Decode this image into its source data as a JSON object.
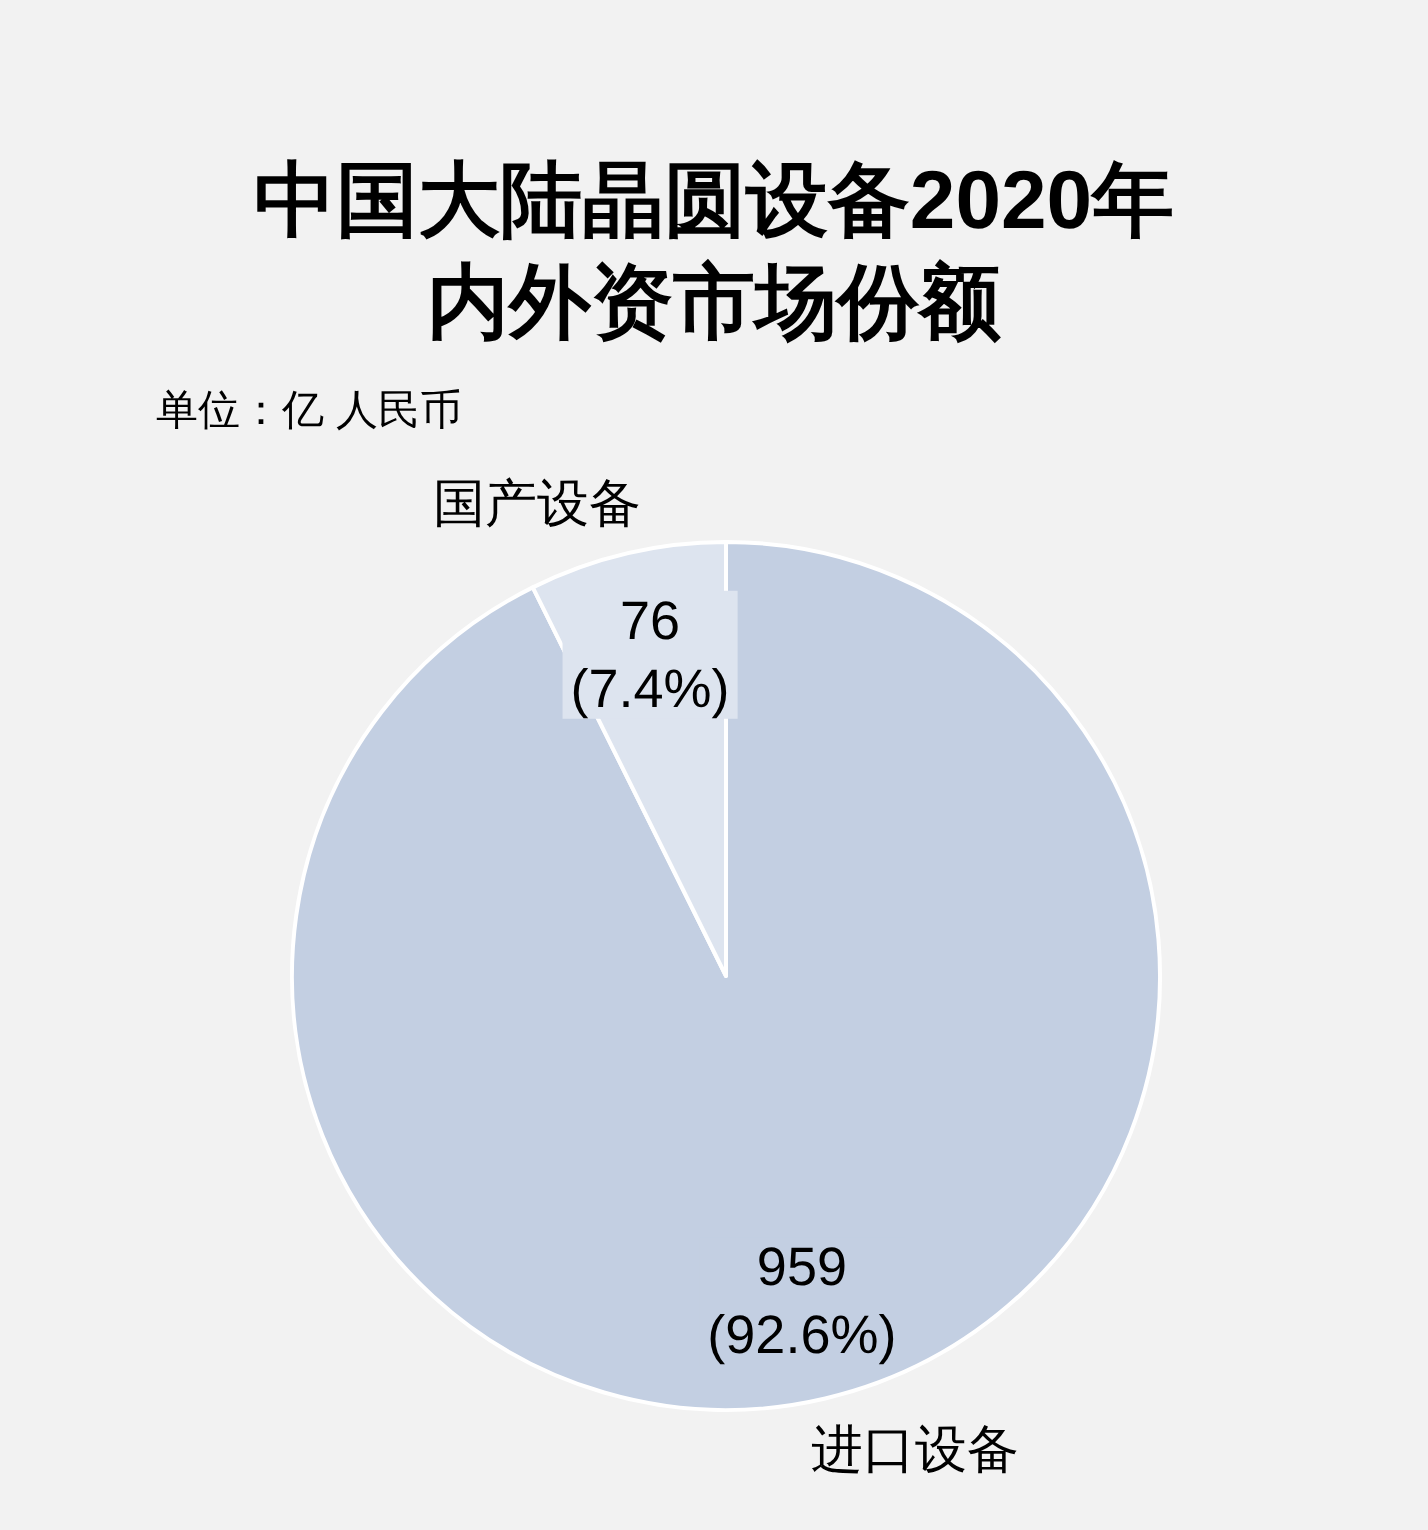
{
  "chart_data": {
    "type": "pie",
    "title": "中国大陆晶圆设备2020年内外资市场份额",
    "subtitle": "单位：亿 人民币",
    "categories": [
      "进口设备",
      "国产设备"
    ],
    "values": [
      959,
      76
    ],
    "colors": [
      "#c3cfe2",
      "#dde4ef"
    ],
    "value_labels": [
      "959 (92.6%)",
      "76 (7.4%)"
    ]
  }
}
